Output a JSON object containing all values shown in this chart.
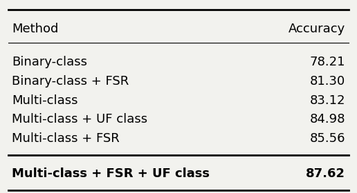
{
  "col_headers": [
    "Method",
    "Accuracy"
  ],
  "rows": [
    {
      "method": "Binary-class",
      "accuracy": "78.21",
      "bold": false
    },
    {
      "method": "Binary-class + FSR",
      "accuracy": "81.30",
      "bold": false
    },
    {
      "method": "Multi-class",
      "accuracy": "83.12",
      "bold": false
    },
    {
      "method": "Multi-class + UF class",
      "accuracy": "84.98",
      "bold": false
    },
    {
      "method": "Multi-class + FSR",
      "accuracy": "85.56",
      "bold": false
    },
    {
      "method": "Multi-class + FSR + UF class",
      "accuracy": "87.62",
      "bold": true
    }
  ],
  "header_fontsize": 13,
  "body_fontsize": 13,
  "bg_color": "#f2f2ee",
  "fig_width": 5.16,
  "fig_height": 2.8
}
